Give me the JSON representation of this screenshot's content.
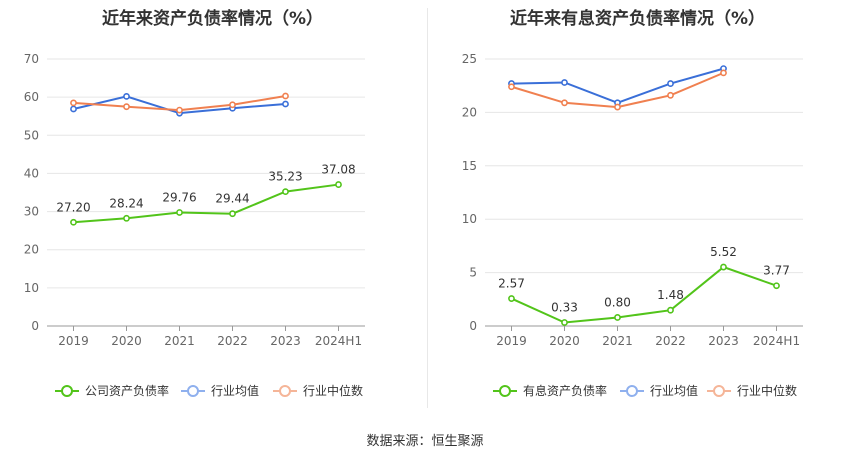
{
  "source": "数据来源：恒生聚源",
  "chart_data": [
    {
      "type": "line",
      "title": "近年来资产负债率情况（%）",
      "categories": [
        "2019",
        "2020",
        "2021",
        "2022",
        "2023",
        "2024H1"
      ],
      "ylim": [
        0,
        70
      ],
      "yticks": [
        0,
        10,
        20,
        30,
        40,
        50,
        60,
        70
      ],
      "series": [
        {
          "name": "公司资产负债率",
          "color": "#52c41a",
          "values": [
            27.2,
            28.24,
            29.76,
            29.44,
            35.23,
            37.08
          ],
          "labels": [
            "27.20",
            "28.24",
            "29.76",
            "29.44",
            "35.23",
            "37.08"
          ]
        },
        {
          "name": "行业均值",
          "color": "#3a6fd8",
          "values": [
            56.9,
            60.2,
            55.8,
            57.1,
            58.2,
            null
          ]
        },
        {
          "name": "行业中位数",
          "color": "#f08050",
          "values": [
            58.5,
            57.5,
            56.6,
            58.0,
            60.3,
            null
          ]
        }
      ],
      "legend_colors": [
        "#52c41a",
        "#8fb0ee",
        "#f5b598"
      ]
    },
    {
      "type": "line",
      "title": "近年来有息资产负债率情况（%）",
      "categories": [
        "2019",
        "2020",
        "2021",
        "2022",
        "2023",
        "2024H1"
      ],
      "ylim": [
        0,
        25
      ],
      "yticks": [
        0,
        5,
        10,
        15,
        20,
        25
      ],
      "series": [
        {
          "name": "有息资产负债率",
          "color": "#52c41a",
          "values": [
            2.57,
            0.33,
            0.8,
            1.48,
            5.52,
            3.77
          ],
          "labels": [
            "2.57",
            "0.33",
            "0.80",
            "1.48",
            "5.52",
            "3.77"
          ]
        },
        {
          "name": "行业均值",
          "color": "#3a6fd8",
          "values": [
            22.7,
            22.8,
            20.9,
            22.7,
            24.1,
            null
          ]
        },
        {
          "name": "行业中位数",
          "color": "#f08050",
          "values": [
            22.4,
            20.9,
            20.5,
            21.6,
            23.7,
            null
          ]
        }
      ],
      "legend_colors": [
        "#52c41a",
        "#8fb0ee",
        "#f5b598"
      ]
    }
  ]
}
